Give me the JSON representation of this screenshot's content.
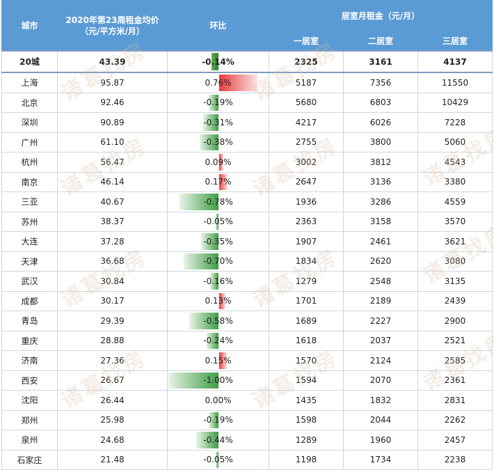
{
  "header": {
    "city": "城市",
    "avg_line1": "2020年第23周租金均价",
    "avg_line2": "（元/平方米/月）",
    "mom": "环比",
    "rent_group": "居室月租金（元/月）",
    "one": "一居室",
    "two": "二居室",
    "three": "三居室"
  },
  "watermark": "诸葛找房",
  "colors": {
    "header_bg": "#5b9bd5",
    "bar_negative": "#3f9c45",
    "bar_positive": "#e53d3d"
  },
  "chart_data": {
    "type": "table",
    "columns": [
      "城市",
      "2020年第23周租金均价（元/平方米/月）",
      "环比",
      "一居室",
      "二居室",
      "三居室"
    ],
    "max_abs_mom_pct": 1.0,
    "total": {
      "city": "20城",
      "avg": "43.39",
      "mom": "-0.14%",
      "mom_value": -0.14,
      "one": "2325",
      "two": "3161",
      "three": "4137"
    },
    "rows": [
      {
        "city": "上海",
        "avg": "95.87",
        "mom": "0.76%",
        "mom_value": 0.76,
        "one": "5187",
        "two": "7356",
        "three": "11550"
      },
      {
        "city": "北京",
        "avg": "92.46",
        "mom": "-0.19%",
        "mom_value": -0.19,
        "one": "5680",
        "two": "6803",
        "three": "10429"
      },
      {
        "city": "深圳",
        "avg": "90.89",
        "mom": "-0.31%",
        "mom_value": -0.31,
        "one": "4217",
        "two": "6026",
        "three": "7228"
      },
      {
        "city": "广州",
        "avg": "61.10",
        "mom": "-0.38%",
        "mom_value": -0.38,
        "one": "2755",
        "two": "3800",
        "three": "5060"
      },
      {
        "city": "杭州",
        "avg": "56.47",
        "mom": "0.09%",
        "mom_value": 0.09,
        "one": "3002",
        "two": "3812",
        "three": "4543"
      },
      {
        "city": "南京",
        "avg": "46.14",
        "mom": "0.17%",
        "mom_value": 0.17,
        "one": "2647",
        "two": "3136",
        "three": "3380"
      },
      {
        "city": "三亚",
        "avg": "40.67",
        "mom": "-0.78%",
        "mom_value": -0.78,
        "one": "1936",
        "two": "3286",
        "three": "4559"
      },
      {
        "city": "苏州",
        "avg": "38.37",
        "mom": "-0.05%",
        "mom_value": -0.05,
        "one": "2363",
        "two": "3158",
        "three": "3570"
      },
      {
        "city": "大连",
        "avg": "37.28",
        "mom": "-0.35%",
        "mom_value": -0.35,
        "one": "1907",
        "two": "2461",
        "three": "3621"
      },
      {
        "city": "天津",
        "avg": "36.68",
        "mom": "-0.70%",
        "mom_value": -0.7,
        "one": "1834",
        "two": "2620",
        "three": "3080"
      },
      {
        "city": "武汉",
        "avg": "30.84",
        "mom": "-0.16%",
        "mom_value": -0.16,
        "one": "1279",
        "two": "2548",
        "three": "3135"
      },
      {
        "city": "成都",
        "avg": "30.17",
        "mom": "0.13%",
        "mom_value": 0.13,
        "one": "1701",
        "two": "2189",
        "three": "2439"
      },
      {
        "city": "青岛",
        "avg": "29.39",
        "mom": "-0.58%",
        "mom_value": -0.58,
        "one": "1689",
        "two": "2227",
        "three": "2900"
      },
      {
        "city": "重庆",
        "avg": "28.88",
        "mom": "-0.24%",
        "mom_value": -0.24,
        "one": "1618",
        "two": "2037",
        "three": "2521"
      },
      {
        "city": "济南",
        "avg": "27.36",
        "mom": "0.15%",
        "mom_value": 0.15,
        "one": "1570",
        "two": "2124",
        "three": "2585"
      },
      {
        "city": "西安",
        "avg": "26.67",
        "mom": "-1.00%",
        "mom_value": -1.0,
        "one": "1594",
        "two": "2070",
        "three": "2361"
      },
      {
        "city": "沈阳",
        "avg": "26.44",
        "mom": "0.00%",
        "mom_value": 0.0,
        "one": "1435",
        "two": "1832",
        "three": "2831"
      },
      {
        "city": "郑州",
        "avg": "25.98",
        "mom": "-0.19%",
        "mom_value": -0.19,
        "one": "1598",
        "two": "2044",
        "three": "2262"
      },
      {
        "city": "泉州",
        "avg": "24.68",
        "mom": "-0.44%",
        "mom_value": -0.44,
        "one": "1289",
        "two": "1960",
        "three": "2457"
      },
      {
        "city": "石家庄",
        "avg": "21.48",
        "mom": "-0.05%",
        "mom_value": -0.05,
        "one": "1198",
        "two": "1734",
        "three": "2238"
      }
    ]
  }
}
